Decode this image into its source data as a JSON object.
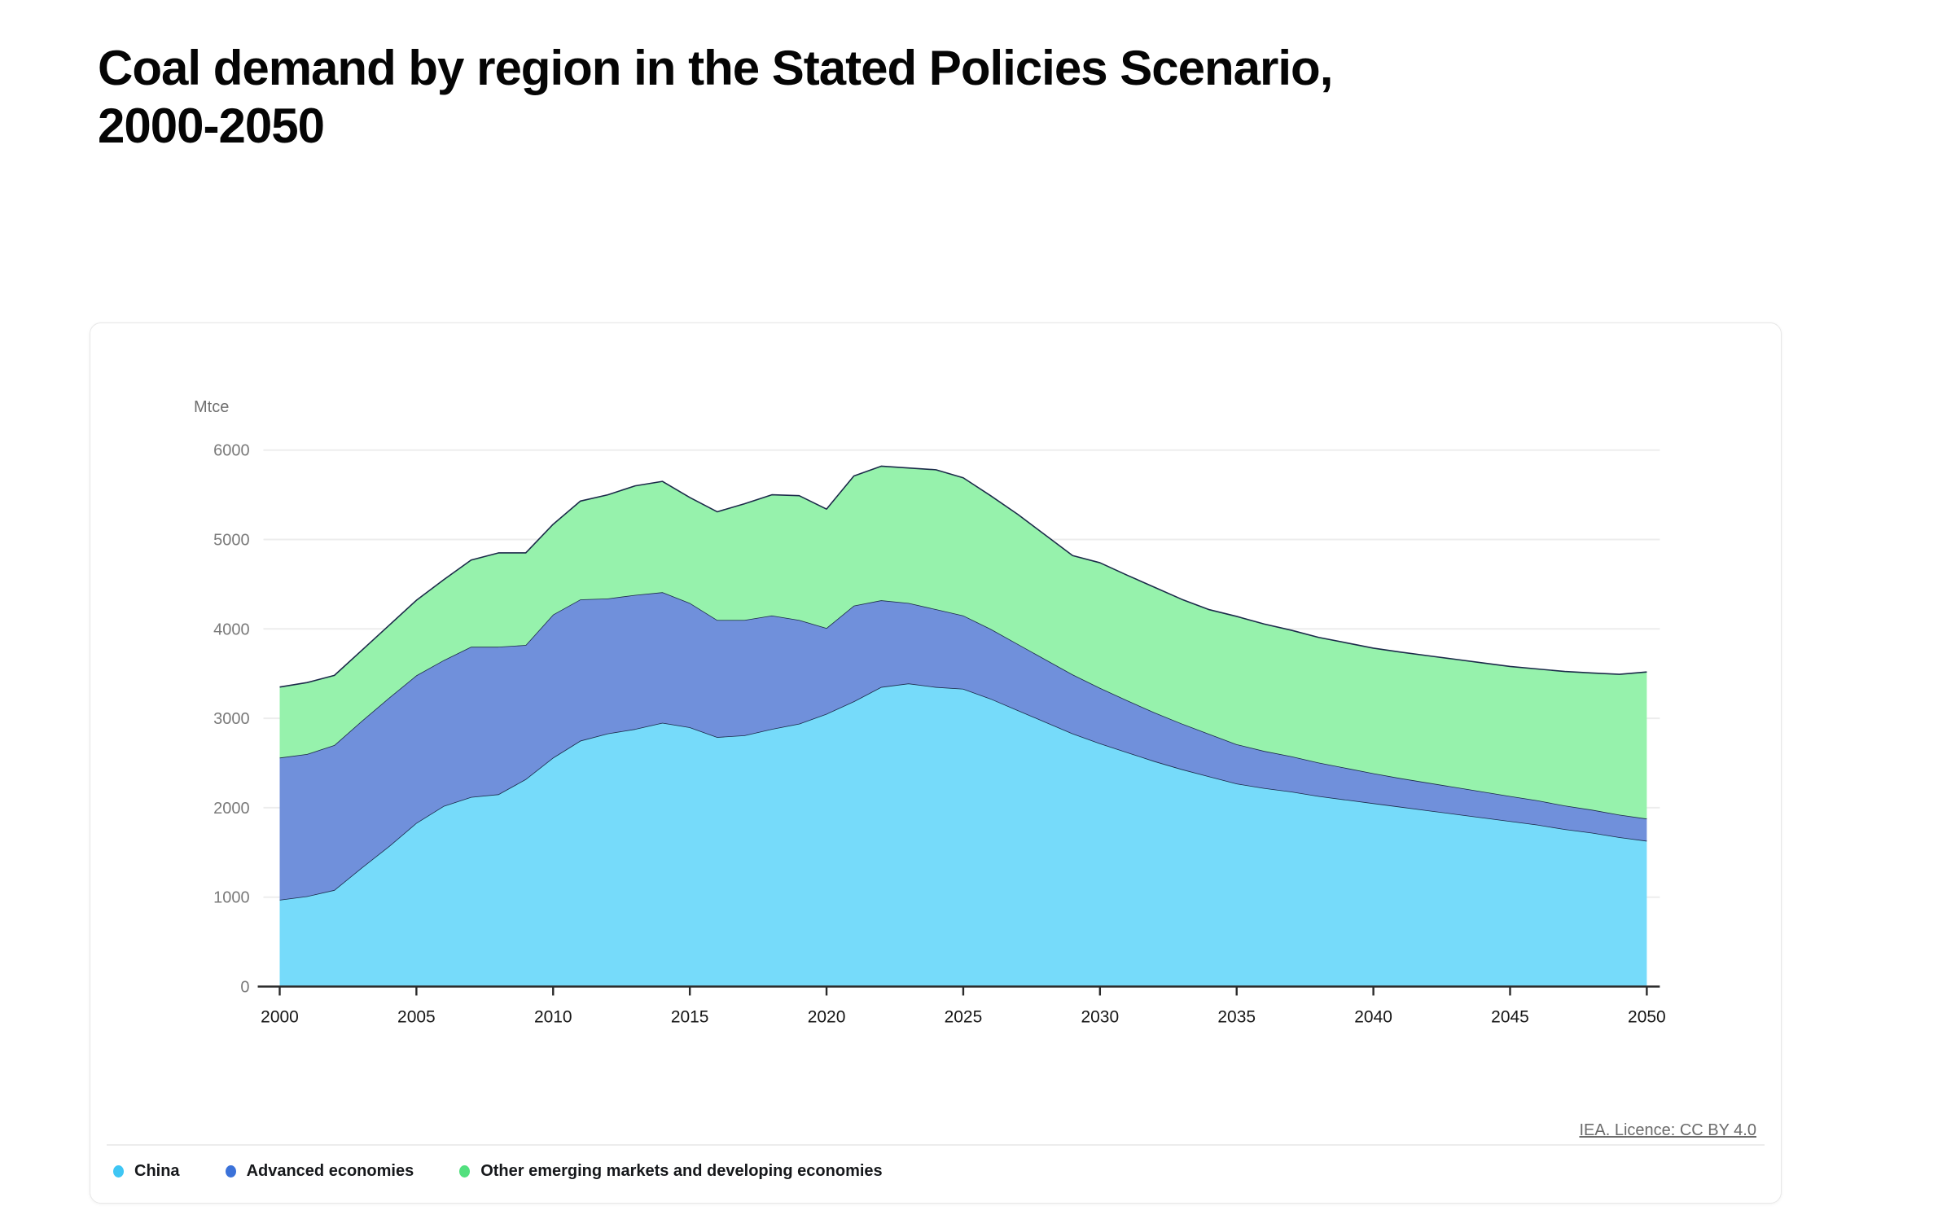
{
  "page": {
    "title": "Coal demand by region in the Stated Policies Scenario, 2000-2050"
  },
  "footer": {
    "license_link": "IEA. Licence: CC BY 4.0"
  },
  "chart_data": {
    "type": "area",
    "stacked": true,
    "title": "Coal demand by region in the Stated Policies Scenario, 2000-2050",
    "unit_label": "Mtce",
    "xlabel": "",
    "ylabel": "Mtce",
    "ylim": [
      0,
      6000
    ],
    "grid": "horizontal",
    "legend_position": "bottom-left",
    "y_ticks": [
      0,
      1000,
      2000,
      3000,
      4000,
      5000,
      6000
    ],
    "x_ticks": [
      2000,
      2005,
      2010,
      2015,
      2020,
      2025,
      2030,
      2035,
      2040,
      2045,
      2050
    ],
    "x": [
      2000,
      2001,
      2002,
      2003,
      2004,
      2005,
      2006,
      2007,
      2008,
      2009,
      2010,
      2011,
      2012,
      2013,
      2014,
      2015,
      2016,
      2017,
      2018,
      2019,
      2020,
      2021,
      2022,
      2023,
      2024,
      2025,
      2026,
      2027,
      2028,
      2029,
      2030,
      2031,
      2032,
      2033,
      2034,
      2035,
      2036,
      2037,
      2038,
      2039,
      2040,
      2041,
      2042,
      2043,
      2044,
      2045,
      2046,
      2047,
      2048,
      2049,
      2050
    ],
    "series": [
      {
        "name": "China",
        "fill_color": "#76DBFA",
        "legend_dot_color": "#3FC6F4",
        "values": [
          970,
          1010,
          1080,
          1330,
          1570,
          1830,
          2020,
          2120,
          2150,
          2320,
          2560,
          2750,
          2830,
          2880,
          2950,
          2900,
          2790,
          2810,
          2880,
          2940,
          3050,
          3190,
          3350,
          3390,
          3350,
          3330,
          3220,
          3090,
          2960,
          2830,
          2720,
          2620,
          2520,
          2430,
          2350,
          2270,
          2220,
          2180,
          2130,
          2090,
          2050,
          2010,
          1970,
          1930,
          1890,
          1850,
          1810,
          1760,
          1720,
          1670,
          1630
        ]
      },
      {
        "name": "Advanced economies",
        "fill_color": "#7090DB",
        "legend_dot_color": "#3B72D9",
        "values": [
          1590,
          1590,
          1620,
          1640,
          1660,
          1650,
          1630,
          1680,
          1650,
          1500,
          1600,
          1580,
          1510,
          1500,
          1460,
          1390,
          1310,
          1290,
          1270,
          1160,
          960,
          1070,
          970,
          900,
          870,
          820,
          780,
          740,
          700,
          660,
          620,
          580,
          545,
          510,
          475,
          440,
          415,
          395,
          375,
          355,
          335,
          320,
          310,
          300,
          290,
          280,
          272,
          264,
          257,
          252,
          248
        ]
      },
      {
        "name": "Other emerging markets and developing economies",
        "fill_color": "#96F2AC",
        "legend_dot_color": "#52E07E",
        "values": [
          790,
          800,
          780,
          790,
          810,
          840,
          900,
          970,
          1050,
          1030,
          1010,
          1100,
          1160,
          1220,
          1240,
          1180,
          1210,
          1300,
          1350,
          1390,
          1330,
          1450,
          1500,
          1510,
          1560,
          1540,
          1490,
          1450,
          1390,
          1330,
          1400,
          1400,
          1400,
          1390,
          1390,
          1430,
          1420,
          1410,
          1400,
          1400,
          1400,
          1410,
          1420,
          1430,
          1440,
          1450,
          1470,
          1500,
          1530,
          1570,
          1640
        ]
      }
    ],
    "line_stroke_color": "#1b2a49",
    "axis_color": "#2b2b2b",
    "gridline_color": "#ededed"
  }
}
